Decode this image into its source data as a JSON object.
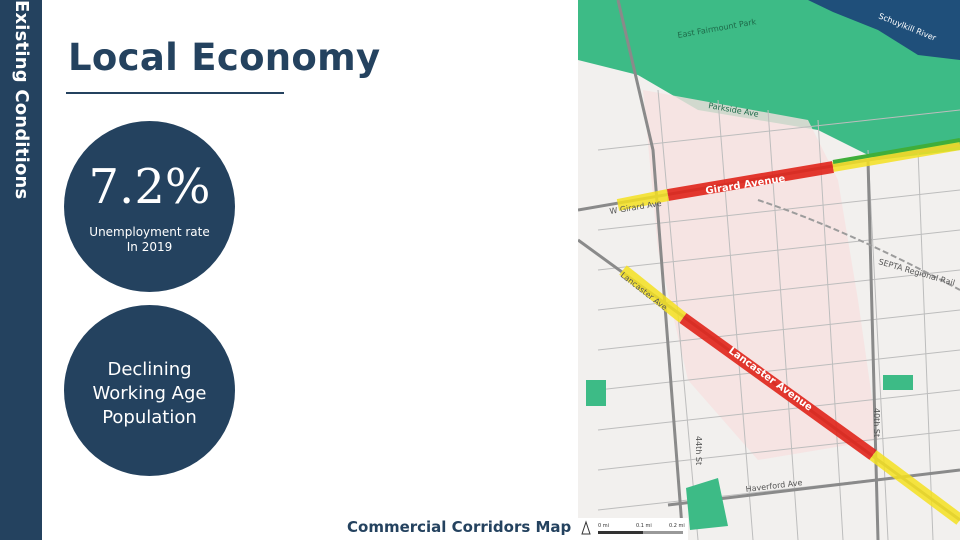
{
  "sidebar": {
    "label": "Existing Conditions"
  },
  "header": {
    "title": "Local Economy"
  },
  "stats": [
    {
      "value": "7.2%",
      "label_line1": "Unemployment rate",
      "label_line2": "In 2019"
    },
    {
      "label_lines": [
        "Declining",
        "Working Age",
        "Population"
      ]
    }
  ],
  "map": {
    "caption": "Commercial Corridors Map",
    "labels": {
      "river": "Schuylkill River",
      "park": "East Fairmount Park",
      "girard": "Girard Avenue",
      "w_girard": "W Girard Ave",
      "lancaster": "Lancaster Avenue",
      "lancaster_ave": "Lancaster Ave",
      "septa": "SEPTA Regional Rail",
      "st44": "44th St",
      "st40": "40th St",
      "haverford": "Haverford Ave",
      "parkside": "Parkside Ave"
    },
    "scale": {
      "s0": "0 mi",
      "s1": "0.1 mi",
      "s2": "0.2 mi"
    }
  },
  "colors": {
    "navy": "#24425f",
    "park_green": "#3dbb86",
    "river_blue": "#1f4f7a",
    "corridor_red": "#e0231a",
    "corridor_yellow": "#f5e020"
  }
}
